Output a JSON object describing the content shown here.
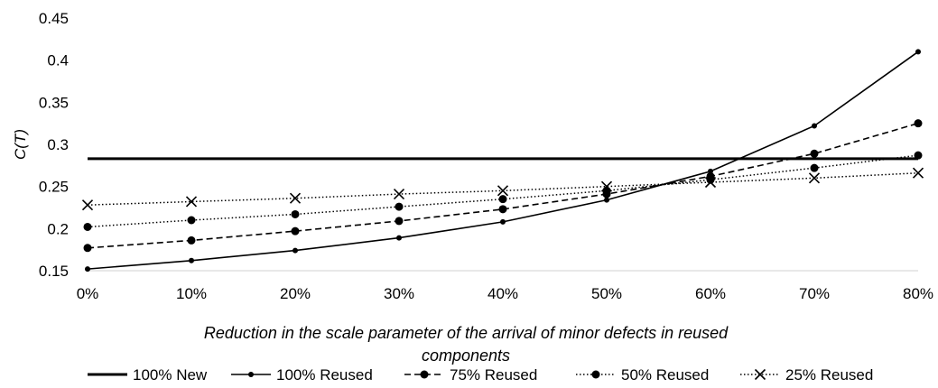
{
  "chart_data": {
    "type": "line",
    "title": "",
    "xlabel_lines": [
      "Reduction in the scale parameter of the arrival of minor defects in reused",
      "components"
    ],
    "ylabel": "C(T)",
    "categories": [
      "0%",
      "10%",
      "20%",
      "30%",
      "40%",
      "50%",
      "60%",
      "70%",
      "80%"
    ],
    "ylim": [
      0.15,
      0.45
    ],
    "yticks": [
      "0.15",
      "0.2",
      "0.25",
      "0.3",
      "0.35",
      "0.4",
      "0.45"
    ],
    "grid": false,
    "legend_position": "bottom",
    "series": [
      {
        "name": "100% New",
        "style": "solid-thick",
        "marker": "none",
        "values": [
          0.283,
          0.283,
          0.283,
          0.283,
          0.283,
          0.283,
          0.283,
          0.283,
          0.283
        ]
      },
      {
        "name": "100% Reused",
        "style": "solid",
        "marker": "small-dot",
        "values": [
          0.152,
          0.162,
          0.174,
          0.189,
          0.208,
          0.234,
          0.268,
          0.322,
          0.41
        ]
      },
      {
        "name": "75% Reused",
        "style": "dashed",
        "marker": "dot",
        "values": [
          0.177,
          0.186,
          0.197,
          0.209,
          0.223,
          0.241,
          0.262,
          0.289,
          0.325
        ]
      },
      {
        "name": "50% Reused",
        "style": "dotted",
        "marker": "dot",
        "values": [
          0.202,
          0.21,
          0.217,
          0.226,
          0.235,
          0.245,
          0.258,
          0.272,
          0.287
        ]
      },
      {
        "name": "25% Reused",
        "style": "dotted",
        "marker": "x",
        "values": [
          0.228,
          0.232,
          0.236,
          0.241,
          0.245,
          0.25,
          0.255,
          0.26,
          0.266
        ]
      }
    ]
  }
}
